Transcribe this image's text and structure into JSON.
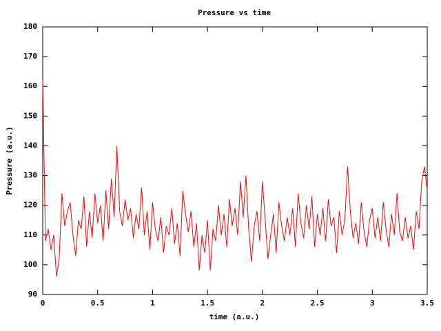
{
  "chart_data": {
    "type": "line",
    "title": "Pressure vs time",
    "x_label": "time (a.u.)",
    "y_label": "Pressure (a.u.)",
    "x": [
      0,
      0.025,
      0.05,
      0.075,
      0.1,
      0.125,
      0.15,
      0.175,
      0.2,
      0.225,
      0.25,
      0.275,
      0.3,
      0.325,
      0.35,
      0.375,
      0.4,
      0.425,
      0.45,
      0.475,
      0.5,
      0.525,
      0.55,
      0.575,
      0.6,
      0.625,
      0.65,
      0.675,
      0.7,
      0.725,
      0.75,
      0.775,
      0.8,
      0.825,
      0.85,
      0.875,
      0.9,
      0.925,
      0.95,
      0.975,
      1,
      1.025,
      1.05,
      1.075,
      1.1,
      1.125,
      1.15,
      1.175,
      1.2,
      1.225,
      1.25,
      1.275,
      1.3,
      1.325,
      1.35,
      1.375,
      1.4,
      1.425,
      1.45,
      1.475,
      1.5,
      1.525,
      1.55,
      1.575,
      1.6,
      1.625,
      1.65,
      1.675,
      1.7,
      1.725,
      1.75,
      1.775,
      1.8,
      1.825,
      1.85,
      1.875,
      1.9,
      1.925,
      1.95,
      1.975,
      2,
      2.025,
      2.05,
      2.075,
      2.1,
      2.125,
      2.15,
      2.175,
      2.2,
      2.225,
      2.25,
      2.275,
      2.3,
      2.325,
      2.35,
      2.375,
      2.4,
      2.425,
      2.45,
      2.475,
      2.5,
      2.525,
      2.55,
      2.575,
      2.6,
      2.625,
      2.65,
      2.675,
      2.7,
      2.725,
      2.75,
      2.775,
      2.8,
      2.825,
      2.85,
      2.875,
      2.9,
      2.925,
      2.95,
      2.975,
      3,
      3.025,
      3.05,
      3.075,
      3.1,
      3.125,
      3.15,
      3.175,
      3.2,
      3.225,
      3.25,
      3.275,
      3.3,
      3.325,
      3.35,
      3.375,
      3.4,
      3.425,
      3.45,
      3.475,
      3.5
    ],
    "series": [
      {
        "color": "#ff0000",
        "values": [
          162,
          108,
          112,
          105,
          110,
          96,
          102,
          124,
          113,
          118,
          121,
          110,
          103,
          115,
          112,
          123,
          106,
          118,
          109,
          124,
          114,
          120,
          108,
          125,
          112,
          129,
          116,
          140,
          118,
          113,
          122,
          115,
          119,
          109,
          117,
          112,
          126,
          110,
          118,
          105,
          121,
          112,
          108,
          116,
          104,
          113,
          110,
          119,
          107,
          114,
          103,
          125,
          117,
          111,
          118,
          106,
          114,
          98,
          110,
          104,
          115,
          98,
          112,
          108,
          120,
          110,
          117,
          106,
          122,
          113,
          119,
          110,
          128,
          116,
          130,
          112,
          101,
          113,
          118,
          108,
          128,
          115,
          102,
          110,
          117,
          104,
          121,
          113,
          108,
          116,
          110,
          119,
          106,
          124,
          114,
          109,
          120,
          112,
          123,
          106,
          117,
          110,
          119,
          108,
          122,
          113,
          116,
          104,
          118,
          110,
          115,
          133,
          118,
          109,
          114,
          107,
          121,
          111,
          106,
          115,
          119,
          109,
          116,
          108,
          121,
          112,
          106,
          117,
          110,
          124,
          111,
          108,
          116,
          109,
          113,
          105,
          118,
          112,
          128,
          133,
          125
        ]
      }
    ],
    "xlim": [
      0,
      3.5
    ],
    "ylim": [
      90,
      180
    ],
    "xticks": [
      0,
      0.5,
      1,
      1.5,
      2,
      2.5,
      3,
      3.5
    ],
    "yticks": [
      90,
      100,
      110,
      120,
      130,
      140,
      150,
      160,
      170,
      180
    ],
    "grid": false
  }
}
